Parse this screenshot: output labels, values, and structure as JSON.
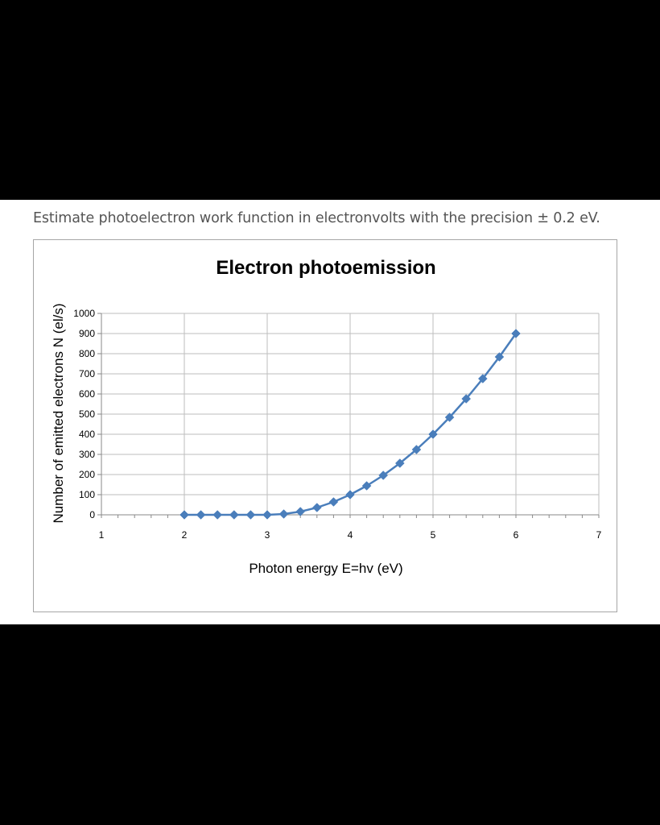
{
  "question": "Estimate photoelectron work function in electronvolts with the precision ± 0.2 eV.",
  "colors": {
    "series": "#4a7ebb",
    "grid": "#bdbdbd",
    "frame": "#a6a6a6"
  },
  "chart_data": {
    "type": "scatter",
    "title": "Electron photoemission",
    "xlabel": "Photon energy E=hv (eV)",
    "ylabel": "Number of emitted electrons N (el/s)",
    "xlim": [
      1,
      7
    ],
    "ylim": [
      0,
      1000
    ],
    "xticks": [
      1,
      2,
      3,
      4,
      5,
      6,
      7
    ],
    "yticks": [
      0,
      100,
      200,
      300,
      400,
      500,
      600,
      700,
      800,
      900,
      1000
    ],
    "grid": true,
    "legend": "none",
    "marker": "diamond",
    "series": [
      {
        "x": [
          2.0,
          2.2,
          2.4,
          2.6,
          2.8,
          3.0,
          3.2,
          3.4,
          3.6,
          3.8,
          4.0,
          4.2,
          4.4,
          4.6,
          4.8,
          5.0,
          5.2,
          5.4,
          5.6,
          5.8,
          6.0
        ],
        "y": [
          0,
          0,
          0,
          0,
          0,
          0,
          4,
          16,
          36,
          64,
          100,
          144,
          196,
          256,
          324,
          400,
          484,
          576,
          676,
          784,
          900
        ]
      }
    ]
  }
}
